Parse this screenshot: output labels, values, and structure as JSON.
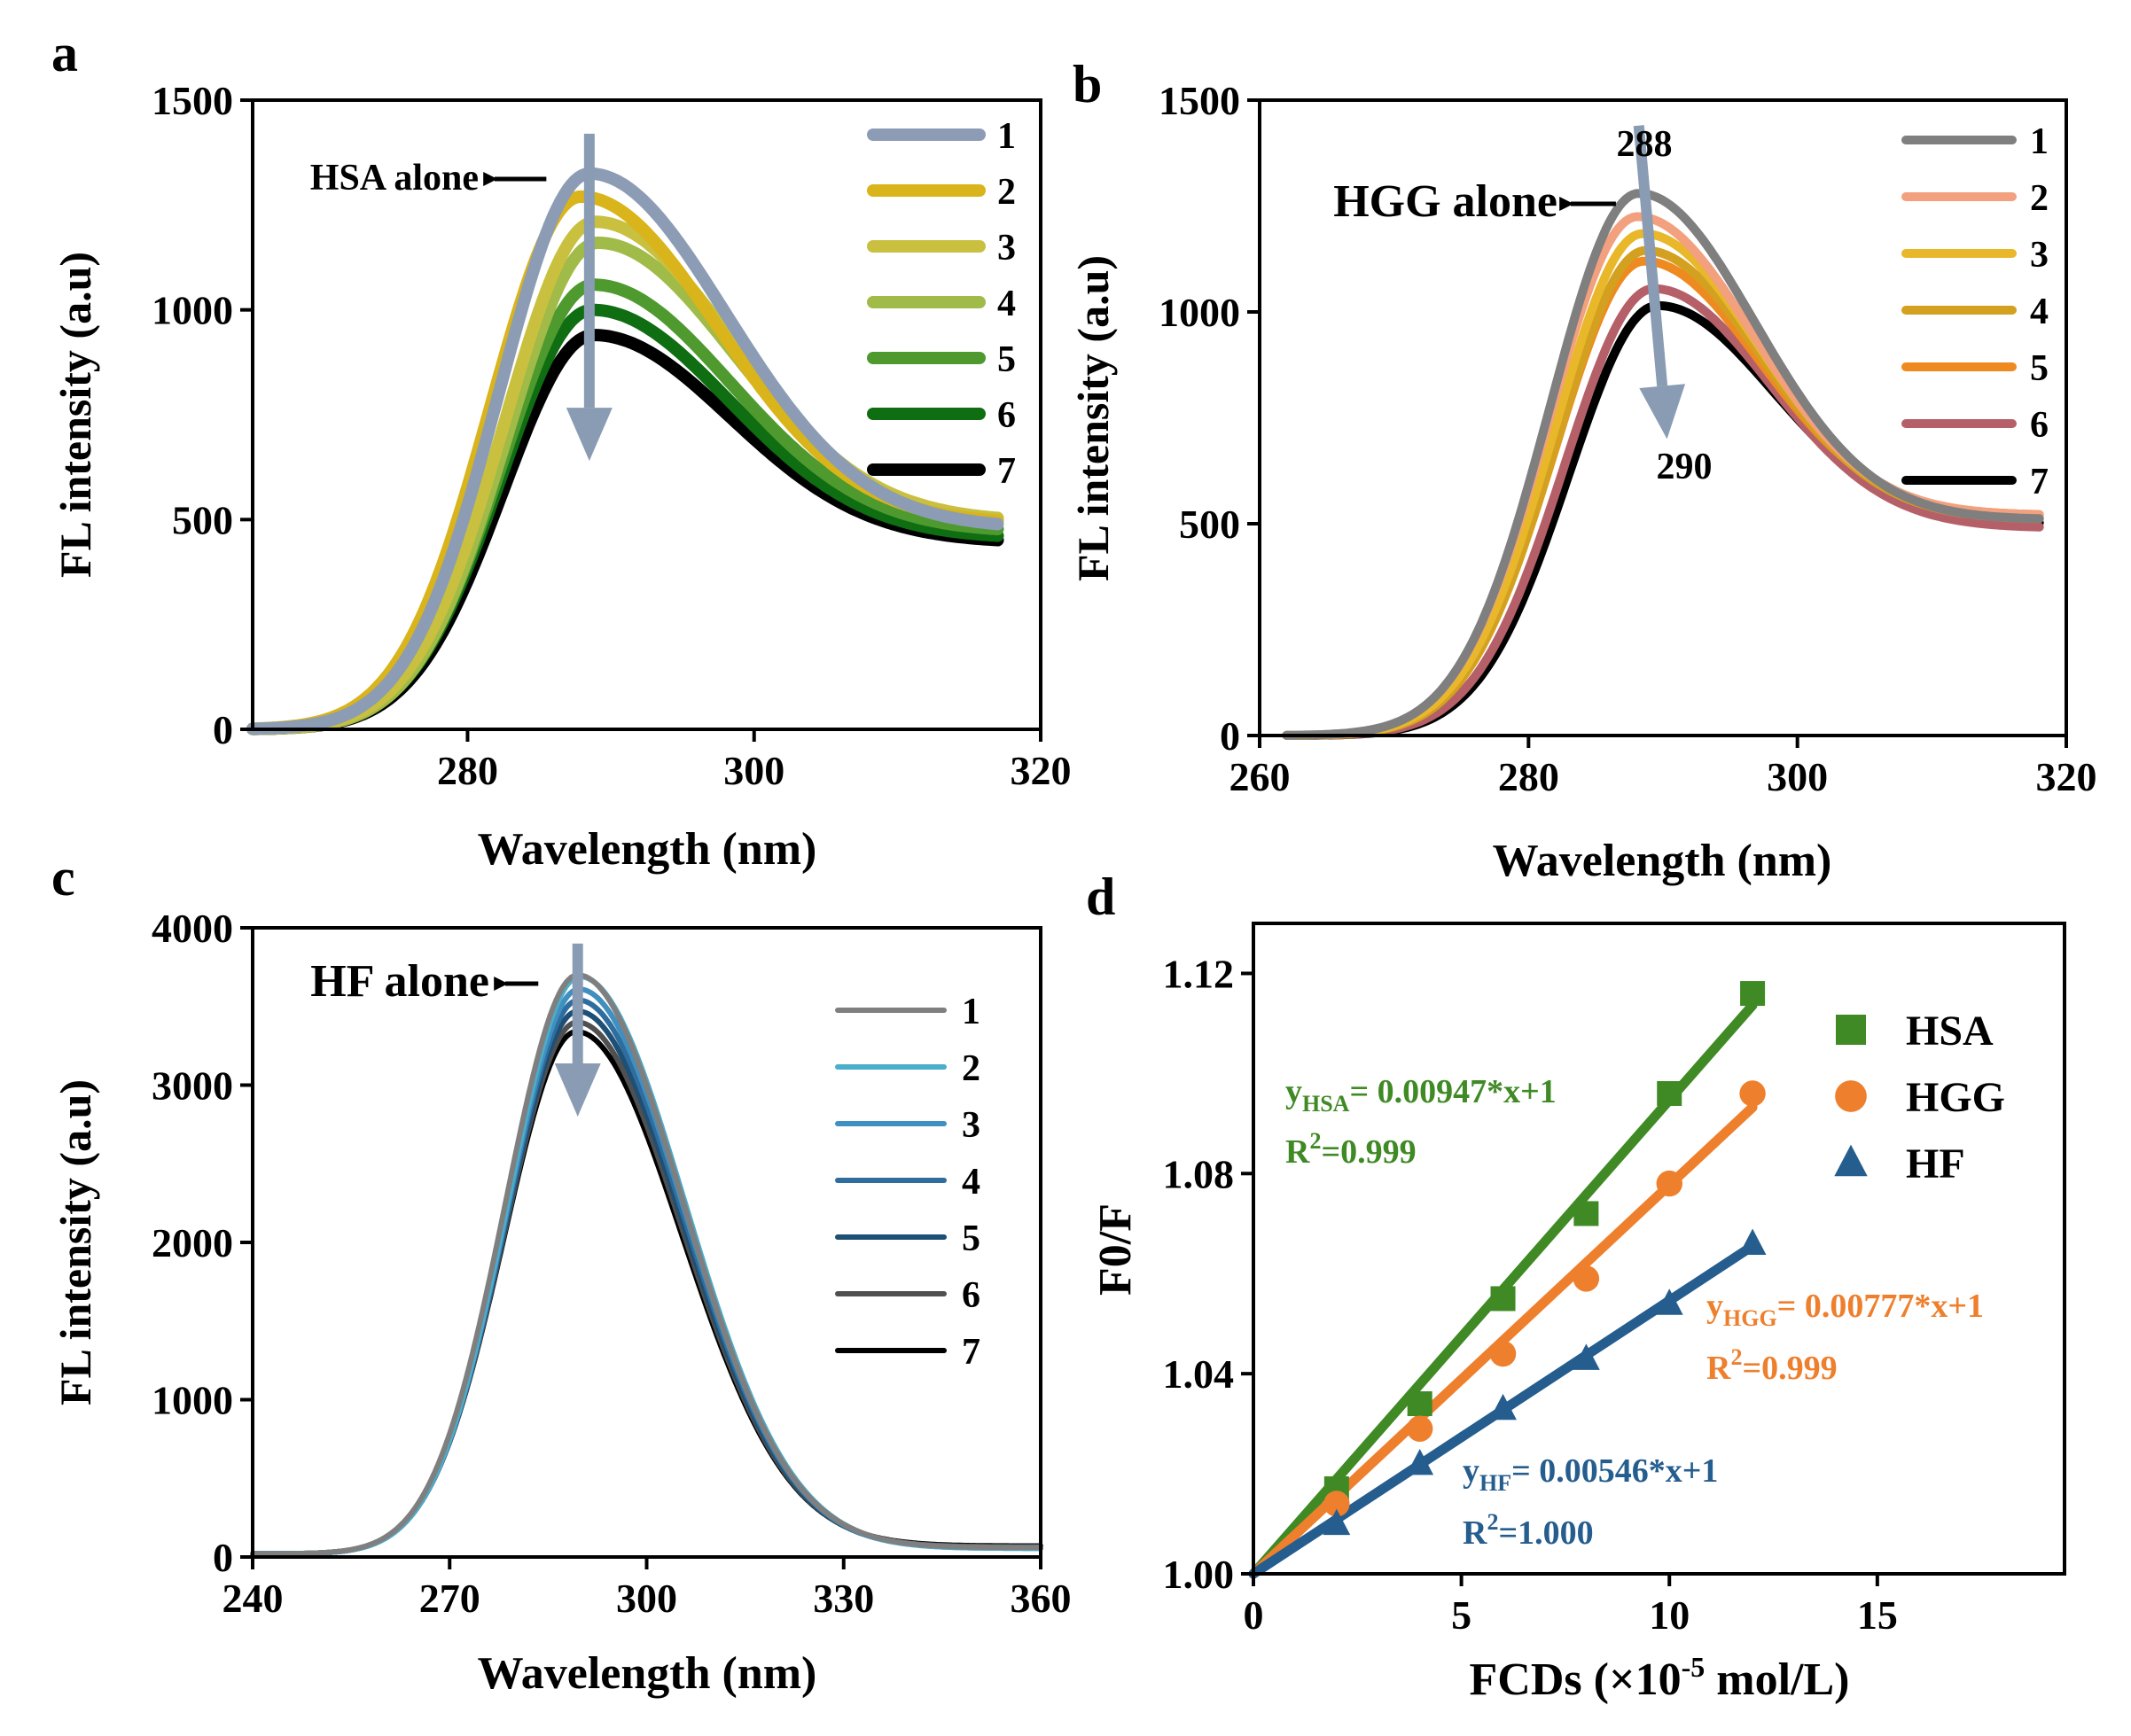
{
  "chart_data": [
    {
      "id": "a",
      "type": "line",
      "panel_label": "a",
      "xlabel": "Wavelength (nm)",
      "ylabel": "FL intensity (a.u)",
      "xlim": [
        265,
        320
      ],
      "ylim": [
        0,
        1500
      ],
      "xticks": [
        280,
        300,
        320
      ],
      "yticks": [
        0,
        500,
        1000,
        1500
      ],
      "x_tick_labels": [
        "280",
        "300",
        "320"
      ],
      "y_tick_labels": [
        "0",
        "500",
        "1000",
        "1500"
      ],
      "annotation": "HSA alone",
      "arrow": {
        "from": [
          288.5,
          1420
        ],
        "to": [
          288.5,
          640
        ]
      },
      "annotation_point": [
        285.5,
        1310
      ],
      "curve": {
        "x_start": 265,
        "x_end": 317,
        "peak_x": 288.5,
        "rise_width": 6.3,
        "fall_width": 9.5,
        "baseline_floor": 0
      },
      "legend": {
        "position": "top-right",
        "labels": [
          "1",
          "2",
          "3",
          "4",
          "5",
          "6",
          "7"
        ]
      },
      "series": [
        {
          "name": "1",
          "color": "#8c9cb5",
          "peak": 1325,
          "tail": 480,
          "shift": 0
        },
        {
          "name": "2",
          "color": "#d9b41a",
          "peak": 1270,
          "tail": 490,
          "shift": -0.6
        },
        {
          "name": "3",
          "color": "#c8c03e",
          "peak": 1210,
          "tail": 495,
          "shift": 0.4
        },
        {
          "name": "4",
          "color": "#a0bb47",
          "peak": 1160,
          "tail": 490,
          "shift": 0.6
        },
        {
          "name": "5",
          "color": "#4e9a2f",
          "peak": 1060,
          "tail": 470,
          "shift": 0.3
        },
        {
          "name": "6",
          "color": "#0f6d12",
          "peak": 1000,
          "tail": 455,
          "shift": 0.2
        },
        {
          "name": "7",
          "color": "#000000",
          "peak": 940,
          "tail": 445,
          "shift": 0.3
        }
      ]
    },
    {
      "id": "b",
      "type": "line",
      "panel_label": "b",
      "xlabel": "Wavelength (nm)",
      "ylabel": "FL intensity (a.u)",
      "xlim": [
        260,
        320
      ],
      "ylim": [
        0,
        1500
      ],
      "xticks": [
        260,
        280,
        300,
        320
      ],
      "yticks": [
        0,
        500,
        1000,
        1500
      ],
      "x_tick_labels": [
        "260",
        "280",
        "300",
        "320"
      ],
      "y_tick_labels": [
        "0",
        "500",
        "1000",
        "1500"
      ],
      "annotation": "HGG alone",
      "annotation_top": "288",
      "annotation_bottom": "290",
      "arrow": {
        "from": [
          288.2,
          1440
        ],
        "to": [
          290.3,
          700
        ]
      },
      "annotation_point": [
        286.5,
        1260
      ],
      "curve": {
        "x_start": 262,
        "x_end": 318,
        "peak_x": 289,
        "rise_width": 6.6,
        "fall_width": 8.6,
        "baseline_floor": 0
      },
      "legend": {
        "position": "top-right",
        "labels": [
          "1",
          "2",
          "3",
          "4",
          "5",
          "6",
          "7"
        ]
      },
      "series": [
        {
          "name": "1",
          "color": "#7f7f7f",
          "peak": 1280,
          "tail": 510,
          "shift": -0.8
        },
        {
          "name": "2",
          "color": "#f2a07e",
          "peak": 1225,
          "tail": 520,
          "shift": -0.9
        },
        {
          "name": "3",
          "color": "#e8b82a",
          "peak": 1185,
          "tail": 515,
          "shift": -0.5
        },
        {
          "name": "4",
          "color": "#d4a020",
          "peak": 1145,
          "tail": 510,
          "shift": -0.3
        },
        {
          "name": "5",
          "color": "#ee8a20",
          "peak": 1120,
          "tail": 520,
          "shift": -0.4
        },
        {
          "name": "6",
          "color": "#b56068",
          "peak": 1055,
          "tail": 490,
          "shift": 0.3
        },
        {
          "name": "7",
          "color": "#000000",
          "peak": 1015,
          "tail": 500,
          "shift": 0.6
        }
      ]
    },
    {
      "id": "c",
      "type": "line",
      "panel_label": "c",
      "xlabel": "Wavelength (nm)",
      "ylabel": "FL intensity (a.u)",
      "xlim": [
        240,
        360
      ],
      "ylim": [
        0,
        4000
      ],
      "xticks": [
        240,
        270,
        300,
        330,
        360
      ],
      "yticks": [
        0,
        1000,
        2000,
        3000,
        4000
      ],
      "x_tick_labels": [
        "240",
        "270",
        "300",
        "330",
        "360"
      ],
      "y_tick_labels": [
        "0",
        "1000",
        "2000",
        "3000",
        "4000"
      ],
      "annotation": "HF alone",
      "arrow": {
        "from": [
          289.5,
          3900
        ],
        "to": [
          289.5,
          2800
        ]
      },
      "annotation_point": [
        283.5,
        3620
      ],
      "curve": {
        "x_start": 240,
        "x_end": 360,
        "peak_x": 289.5,
        "rise_width": 11,
        "fall_width": 16,
        "baseline_floor": 20
      },
      "legend": {
        "position": "top-right",
        "labels": [
          "1",
          "2",
          "3",
          "4",
          "5",
          "6",
          "7"
        ]
      },
      "series": [
        {
          "name": "1",
          "color": "#7f7f7f",
          "peak": 3700,
          "tail": 60,
          "shift": 0
        },
        {
          "name": "2",
          "color": "#4aaecc",
          "peak": 3690,
          "tail": 55,
          "shift": 0.3
        },
        {
          "name": "3",
          "color": "#3f8fc0",
          "peak": 3610,
          "tail": 55,
          "shift": 0.2
        },
        {
          "name": "4",
          "color": "#2e6d9e",
          "peak": 3540,
          "tail": 60,
          "shift": 0.1
        },
        {
          "name": "5",
          "color": "#1e4f75",
          "peak": 3470,
          "tail": 60,
          "shift": 0
        },
        {
          "name": "6",
          "color": "#505050",
          "peak": 3400,
          "tail": 65,
          "shift": -0.1
        },
        {
          "name": "7",
          "color": "#000000",
          "peak": 3340,
          "tail": 70,
          "shift": -0.2
        }
      ]
    },
    {
      "id": "d",
      "type": "scatter",
      "panel_label": "d",
      "xlabel": "FCDs (×10",
      "xlabel_sup": "-5",
      "xlabel_tail": " mol/L)",
      "ylabel": "F0/F",
      "xlim": [
        0,
        19.5
      ],
      "ylim": [
        1.0,
        1.13
      ],
      "xticks": [
        0,
        5,
        10,
        15
      ],
      "yticks": [
        1.0,
        1.04,
        1.08,
        1.12
      ],
      "x_tick_labels": [
        "0",
        "5",
        "10",
        "15"
      ],
      "y_tick_labels": [
        "1.00",
        "1.04",
        "1.08",
        "1.12"
      ],
      "legend": {
        "position": "top-right",
        "labels": [
          "HSA",
          "HGG",
          "HF"
        ]
      },
      "series": [
        {
          "name": "HSA",
          "marker": "square",
          "color": "#3f8a24",
          "x": [
            0,
            2,
            4,
            6,
            8,
            10,
            12
          ],
          "y": [
            1.0,
            1.017,
            1.034,
            1.055,
            1.072,
            1.096,
            1.116
          ],
          "slope": 0.00947,
          "intercept": 1,
          "eq_name": "y",
          "eq_sub": "HSA",
          "eq_rest": "= 0.00947*x+1",
          "r2_pre": "R",
          "r2_sup": "2",
          "r2_post": "=0.999"
        },
        {
          "name": "HGG",
          "marker": "circle",
          "color": "#ee7f2d",
          "x": [
            0,
            2,
            4,
            6,
            8,
            10,
            12
          ],
          "y": [
            1.0,
            1.014,
            1.029,
            1.044,
            1.059,
            1.078,
            1.096
          ],
          "slope": 0.00777,
          "intercept": 1,
          "eq_name": "y",
          "eq_sub": "HGG",
          "eq_rest": "= 0.00777*x+1",
          "r2_pre": "R",
          "r2_sup": "2",
          "r2_post": "=0.999"
        },
        {
          "name": "HF",
          "marker": "triangle",
          "color": "#255d8e",
          "x": [
            0,
            2,
            4,
            6,
            8,
            10,
            12
          ],
          "y": [
            1.0,
            1.01,
            1.022,
            1.033,
            1.043,
            1.054,
            1.066
          ],
          "slope": 0.00546,
          "intercept": 1,
          "eq_name": "y",
          "eq_sub": "HF",
          "eq_rest": "= 0.00546*x+1",
          "r2_pre": "R",
          "r2_sup": "2",
          "r2_post": "=1.000"
        }
      ]
    }
  ]
}
